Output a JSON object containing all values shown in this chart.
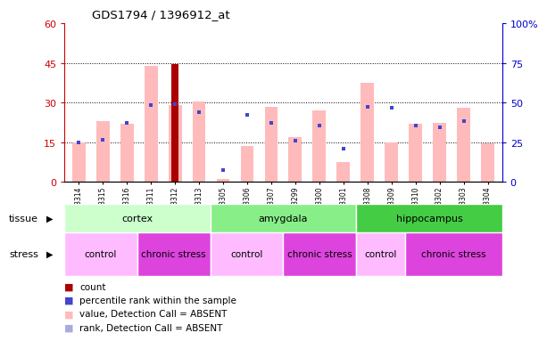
{
  "title": "GDS1794 / 1396912_at",
  "samples": [
    "GSM53314",
    "GSM53315",
    "GSM53316",
    "GSM53311",
    "GSM53312",
    "GSM53313",
    "GSM53305",
    "GSM53306",
    "GSM53307",
    "GSM53299",
    "GSM53300",
    "GSM53301",
    "GSM53308",
    "GSM53309",
    "GSM53310",
    "GSM53302",
    "GSM53303",
    "GSM53304"
  ],
  "pink_bars": [
    15.0,
    23.0,
    22.0,
    44.0,
    29.0,
    30.5,
    1.0,
    13.5,
    28.5,
    17.0,
    27.0,
    7.5,
    37.5,
    15.0,
    22.0,
    22.5,
    28.0,
    14.5
  ],
  "blue_squares_left": [
    15.0,
    16.0,
    22.5,
    29.0,
    29.5,
    26.5,
    4.5,
    25.5,
    22.5,
    15.5,
    21.5,
    12.5,
    28.5,
    28.0,
    21.5,
    20.5,
    23.0,
    null
  ],
  "dark_red_bar_idx": 4,
  "dark_red_bar_val": 44.5,
  "ylim_left": [
    0,
    60
  ],
  "ylim_right": [
    0,
    100
  ],
  "yticks_left": [
    0,
    15,
    30,
    45,
    60
  ],
  "yticks_right": [
    0,
    25,
    50,
    75,
    100
  ],
  "ytick_labels_left": [
    "0",
    "15",
    "30",
    "45",
    "60"
  ],
  "ytick_labels_right": [
    "0",
    "25",
    "50",
    "75",
    "100%"
  ],
  "pink_color": "#ffbbbb",
  "blue_color": "#4444cc",
  "lavender_color": "#aaaadd",
  "dark_red_color": "#aa0000",
  "left_axis_color": "#cc0000",
  "right_axis_color": "#0000cc",
  "tissue_groups": [
    {
      "label": "cortex",
      "start": 0,
      "end": 6,
      "color": "#ccffcc"
    },
    {
      "label": "amygdala",
      "start": 6,
      "end": 12,
      "color": "#88ee88"
    },
    {
      "label": "hippocampus",
      "start": 12,
      "end": 18,
      "color": "#44cc44"
    }
  ],
  "stress_groups": [
    {
      "label": "control",
      "start": 0,
      "end": 3,
      "color": "#ffbbff"
    },
    {
      "label": "chronic stress",
      "start": 3,
      "end": 6,
      "color": "#dd44dd"
    },
    {
      "label": "control",
      "start": 6,
      "end": 9,
      "color": "#ffbbff"
    },
    {
      "label": "chronic stress",
      "start": 9,
      "end": 12,
      "color": "#dd44dd"
    },
    {
      "label": "control",
      "start": 12,
      "end": 14,
      "color": "#ffbbff"
    },
    {
      "label": "chronic stress",
      "start": 14,
      "end": 18,
      "color": "#dd44dd"
    }
  ],
  "legend_items": [
    {
      "color": "#aa0000",
      "label": "count"
    },
    {
      "color": "#4444cc",
      "label": "percentile rank within the sample"
    },
    {
      "color": "#ffbbbb",
      "label": "value, Detection Call = ABSENT"
    },
    {
      "color": "#aaaadd",
      "label": "rank, Detection Call = ABSENT"
    }
  ]
}
